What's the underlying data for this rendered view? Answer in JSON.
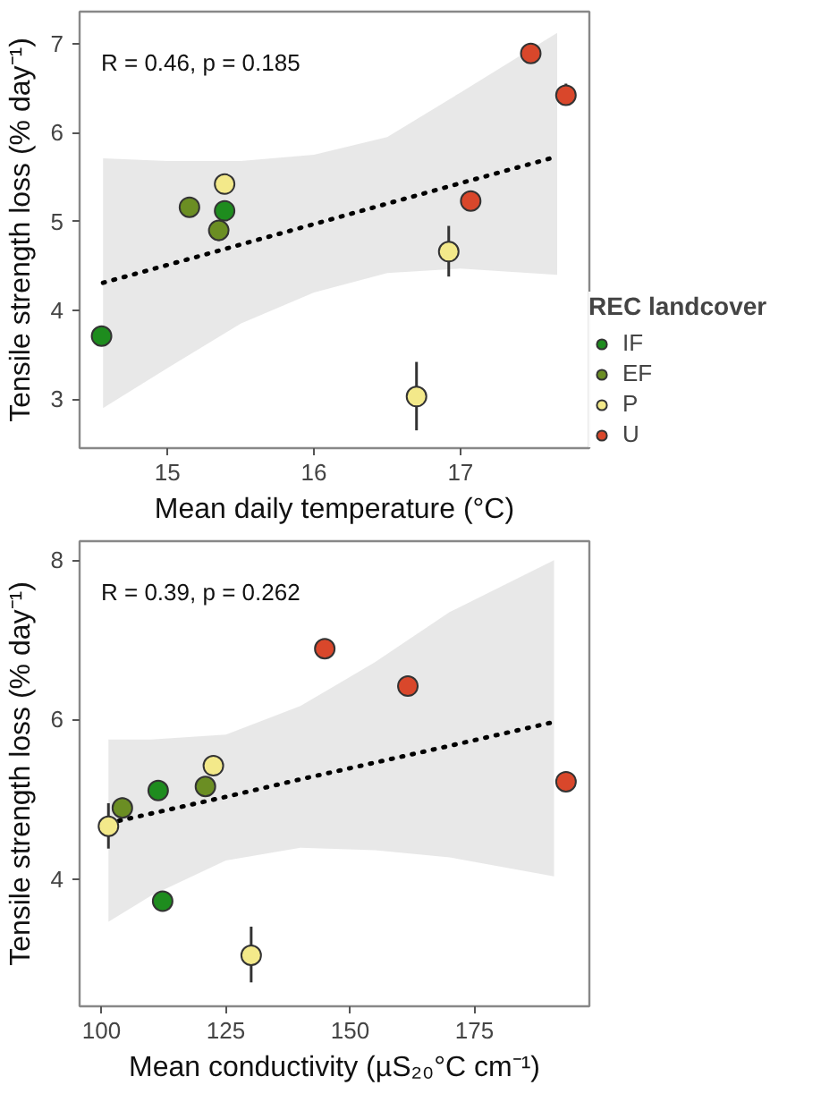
{
  "chart_data": [
    {
      "type": "scatter",
      "xlabel": "Mean daily temperature (°C)",
      "ylabel": "Tensile strength loss (% day⁻¹)",
      "legend_title": "REC landcover",
      "legend": "right",
      "marker": "circle",
      "grid": false,
      "annotations": [
        "R = 0.46, p = 0.185"
      ],
      "xlim": [
        14.4,
        17.88
      ],
      "ylim": [
        2.45,
        7.36
      ],
      "xticks": [
        15,
        16,
        17
      ],
      "yticks": [
        3,
        4,
        5,
        6,
        7
      ],
      "series": [
        {
          "name": "IF",
          "color": "#1e8c1e",
          "x": [
            14.55,
            15.39
          ],
          "values": [
            3.71,
            5.12
          ],
          "errors": [
            null,
            null
          ]
        },
        {
          "name": "EF",
          "color": "#6b8e23",
          "x": [
            15.15,
            15.35
          ],
          "values": [
            5.16,
            4.9
          ],
          "errors": [
            null,
            [
              4.78,
              5.0
            ]
          ]
        },
        {
          "name": "P",
          "color": "#f3e98a",
          "x": [
            15.39,
            16.92,
            16.7
          ],
          "values": [
            5.42,
            4.66,
            3.03
          ],
          "errors": [
            null,
            [
              4.38,
              4.95
            ],
            [
              2.65,
              3.42
            ]
          ]
        },
        {
          "name": "U",
          "color": "#d9472b",
          "x": [
            17.07,
            17.48,
            17.72
          ],
          "values": [
            5.23,
            6.89,
            6.42
          ],
          "errors": [
            null,
            null,
            [
              6.32,
              6.55
            ]
          ]
        },
        {
          "type": "line",
          "color": "#000000",
          "line_style": "dotted",
          "marker": "none",
          "x": [
            14.56,
            15.0,
            15.5,
            16.0,
            16.5,
            17.0,
            17.66
          ],
          "values": [
            4.31,
            4.51,
            4.74,
            4.97,
            5.2,
            5.43,
            5.73
          ],
          "lower": [
            2.9,
            3.35,
            3.85,
            4.2,
            4.42,
            4.47,
            4.4
          ],
          "upper": [
            5.71,
            5.68,
            5.68,
            5.75,
            5.95,
            6.45,
            7.12
          ]
        }
      ]
    },
    {
      "type": "scatter",
      "xlabel": "Mean conductivity (µS₂₀°C cm⁻¹)",
      "ylabel": "Tensile strength loss (% day⁻¹)",
      "marker": "circle",
      "grid": false,
      "annotations": [
        "R = 0.39, p = 0.262"
      ],
      "xlim": [
        95.6,
        198.1
      ],
      "ylim": [
        2.4,
        8.24
      ],
      "xticks": [
        100,
        125,
        150,
        175
      ],
      "yticks": [
        4,
        6,
        8
      ],
      "series": [
        {
          "color": "#1e8c1e",
          "x": [
            112.3,
            111.4
          ],
          "values": [
            3.72,
            5.11
          ],
          "errors": [
            null,
            null
          ]
        },
        {
          "color": "#6b8e23",
          "x": [
            120.9,
            104.2
          ],
          "values": [
            5.16,
            4.89
          ],
          "errors": [
            null,
            [
              4.78,
              5.02
            ]
          ]
        },
        {
          "color": "#f3e98a",
          "x": [
            122.5,
            101.4,
            130.1
          ],
          "values": [
            5.42,
            4.66,
            3.04
          ],
          "errors": [
            null,
            [
              4.38,
              4.95
            ],
            [
              2.7,
              3.4
            ]
          ]
        },
        {
          "color": "#d9472b",
          "x": [
            193.4,
            144.9,
            161.6
          ],
          "values": [
            5.22,
            6.89,
            6.42
          ],
          "errors": [
            null,
            null,
            [
              6.32,
              6.55
            ]
          ]
        },
        {
          "type": "line",
          "color": "#000000",
          "line_style": "dotted",
          "marker": "none",
          "x": [
            101.4,
            110,
            125,
            140,
            155,
            170,
            191
          ],
          "values": [
            4.7,
            4.82,
            5.03,
            5.25,
            5.46,
            5.67,
            5.97
          ],
          "lower": [
            3.46,
            3.79,
            4.23,
            4.39,
            4.36,
            4.27,
            4.03
          ],
          "upper": [
            5.75,
            5.75,
            5.81,
            6.17,
            6.72,
            7.35,
            8.0
          ]
        }
      ]
    }
  ]
}
